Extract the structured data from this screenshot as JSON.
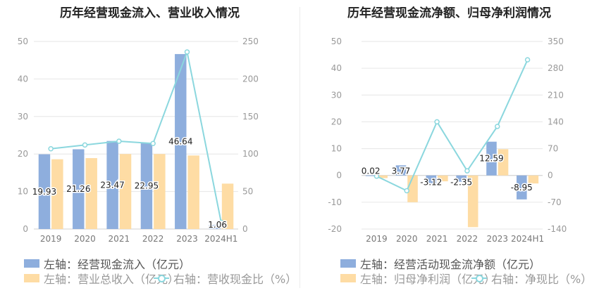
{
  "colors": {
    "inflow": "#8eaedd",
    "revenue": "#fedca4",
    "ratio": "#8bd7de",
    "axis": "#999999",
    "grid": "#e6e6e6"
  },
  "chart_data": [
    {
      "id": "left",
      "type": "bar",
      "title": "历年经营现金流入、营业收入情况",
      "categories": [
        "2019",
        "2020",
        "2021",
        "2022",
        "2023",
        "2024H1"
      ],
      "y_left": {
        "min": 0,
        "max": 50,
        "ticks": [
          0,
          10,
          20,
          30,
          40,
          50
        ]
      },
      "y_right": {
        "min": 0,
        "max": 250,
        "ticks": [
          0,
          50,
          100,
          150,
          200,
          250
        ]
      },
      "series": [
        {
          "name": "左轴：经营现金流入（亿元）",
          "kind": "bar",
          "axis": "left",
          "values": [
            19.93,
            21.26,
            23.47,
            22.95,
            46.64,
            1.06
          ],
          "labels": [
            "19.93",
            "21.26",
            "23.47",
            "22.95",
            "46.64",
            "1.06"
          ]
        },
        {
          "name": "左轴：营业总收入（亿元）",
          "kind": "bar",
          "axis": "left",
          "values": [
            18.6,
            18.9,
            20.0,
            20.0,
            19.6,
            12.1
          ]
        },
        {
          "name": "右轴：营收现金比（%）",
          "kind": "line",
          "axis": "right",
          "values": [
            107,
            112,
            117,
            114,
            236,
            9
          ]
        }
      ],
      "grid": true,
      "legend_position": "bottom-left"
    },
    {
      "id": "right",
      "type": "bar",
      "title": "历年经营现金流净额、归母净利润情况",
      "categories": [
        "2019",
        "2020",
        "2021",
        "2022",
        "2023",
        "2024H1"
      ],
      "y_left": {
        "min": -20,
        "max": 50,
        "ticks": [
          -20,
          -10,
          0,
          10,
          20,
          30,
          40,
          50
        ]
      },
      "y_right": {
        "min": -140,
        "max": 350,
        "ticks": [
          -140,
          -70,
          0,
          70,
          140,
          210,
          280,
          350
        ]
      },
      "series": [
        {
          "name": "左轴：经营活动现金流净额（亿元）",
          "kind": "bar",
          "axis": "left",
          "values": [
            0.02,
            3.77,
            -3.12,
            -2.35,
            12.59,
            -8.95
          ],
          "labels": [
            "0.02",
            "3.77",
            "-3.12",
            "-2.35",
            "12.59",
            "-8.95"
          ]
        },
        {
          "name": "左轴：归母净利润（亿元）",
          "kind": "bar",
          "axis": "left",
          "values": [
            -1.0,
            -10.0,
            -2.2,
            -19.3,
            9.8,
            -3.0
          ]
        },
        {
          "name": "右轴：净现比（%）",
          "kind": "line",
          "axis": "right",
          "values": [
            -2,
            -40,
            140,
            12,
            128,
            302
          ]
        }
      ],
      "grid": true,
      "legend_position": "bottom-left"
    }
  ]
}
